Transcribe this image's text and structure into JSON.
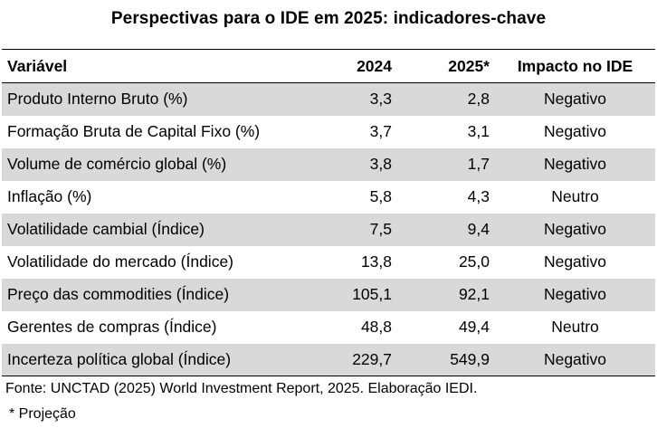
{
  "title": "Perspectivas para o IDE em 2025: indicadores-chave",
  "table": {
    "headers": [
      "Variável",
      "2024",
      "2025*",
      "Impacto no IDE"
    ],
    "rows": [
      [
        "Produto Interno Bruto (%)",
        "3,3",
        "2,8",
        "Negativo"
      ],
      [
        "Formação Bruta de Capital Fixo (%)",
        "3,7",
        "3,1",
        "Negativo"
      ],
      [
        "Volume de comércio global (%)",
        "3,8",
        "1,7",
        "Negativo"
      ],
      [
        "Inflação (%)",
        "5,8",
        "4,3",
        "Neutro"
      ],
      [
        "Volatilidade cambial (Índice)",
        "7,5",
        "9,4",
        "Negativo"
      ],
      [
        "Volatilidade do mercado (Índice)",
        "13,8",
        "25,0",
        "Negativo"
      ],
      [
        "Preço das commodities (Índice)",
        "105,1",
        "92,1",
        "Negativo"
      ],
      [
        "Gerentes de compras (Índice)",
        "48,8",
        "49,4",
        "Neutro"
      ],
      [
        "Incerteza política global (Índice)",
        "229,7",
        "549,9",
        "Negativo"
      ]
    ]
  },
  "source": "Fonte: UNCTAD (2025) World Investment Report, 2025. Elaboração IEDI.",
  "note": "* Projeção",
  "colors": {
    "stripe": "#d9d9d9",
    "rule": "#000000",
    "background": "#ffffff"
  }
}
